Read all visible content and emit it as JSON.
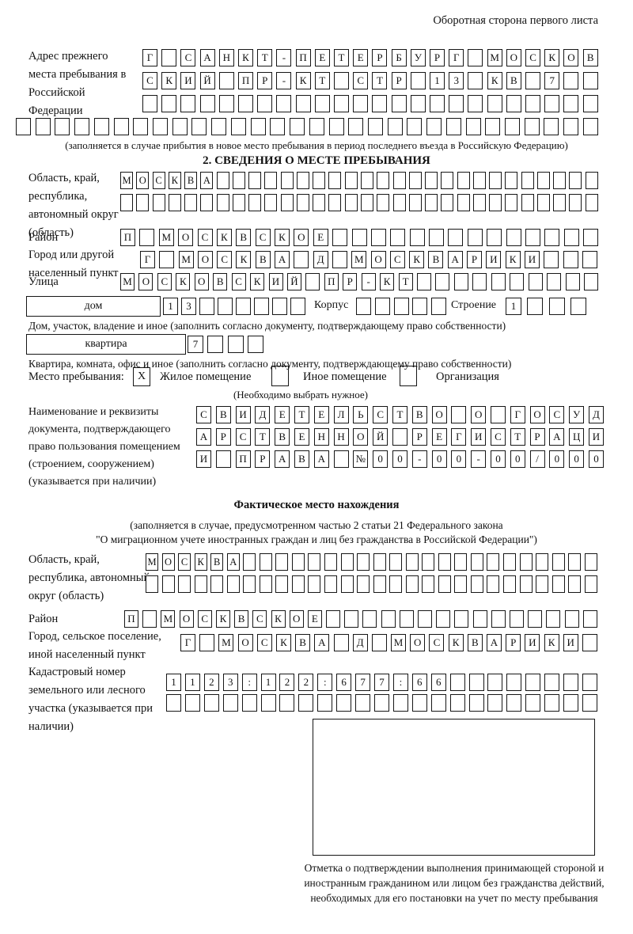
{
  "header": {
    "note": "Оборотная сторона первого листа"
  },
  "prev_address": {
    "label": "Адрес прежнего места пребывания в Российской Федерации",
    "rows": [
      {
        "count": 24,
        "cells": "Г САНКТ-ПЕТЕРБУРГ МОСКОВ"
      },
      {
        "count": 24,
        "cells": "СКИЙ ПР-КТ СТР 13 КВ 7"
      },
      {
        "count": 24,
        "cells": ""
      },
      {
        "count": 30,
        "cells": ""
      }
    ],
    "caption": "(заполняется в случае прибытия в новое место пребывания в период последнего въезда в Российскую Федерацию)"
  },
  "section2": {
    "title": "2. СВЕДЕНИЯ О МЕСТЕ ПРЕБЫВАНИЯ",
    "region": {
      "label": "Область, край, республика, автономный округ (область)",
      "rows": [
        {
          "count": 30,
          "cells": "МОСКВА"
        },
        {
          "count": 30,
          "cells": ""
        }
      ]
    },
    "district": {
      "label": "Район",
      "row": {
        "count": 25,
        "cells": "П МОСКВСКОЕ"
      }
    },
    "city": {
      "label": "Город или другой населенный пункт",
      "row": {
        "count": 24,
        "cells": "Г МОСКВА Д МОСКВАРИКИ"
      }
    },
    "street": {
      "label": "Улица",
      "row": {
        "count": 26,
        "cells": "МОСКОВСКИЙ ПР-КТ"
      }
    },
    "house": {
      "box_label": "дом",
      "row": {
        "count": 8,
        "cells": "13"
      },
      "korpus_label": "Корпус",
      "korpus_row": {
        "count": 5,
        "cells": ""
      },
      "stroenie_label": "Строение",
      "stroenie_row": {
        "count": 4,
        "cells": "1"
      },
      "caption": "Дом, участок, владение и иное (заполнить согласно документу, подтверждающему право собственности)"
    },
    "apartment": {
      "box_label": "квартира",
      "row": {
        "count": 4,
        "cells": "7"
      },
      "caption": "Квартира, комната, офис и иное (заполнить согласно документу, подтверждающему право собственности)"
    },
    "stay": {
      "label": "Место пребывания:",
      "mark": "X",
      "option_residential": "Жилое помещение",
      "option_other": "Иное помещение",
      "option_org": "Организация",
      "note": "(Необходимо выбрать нужное)"
    },
    "document": {
      "label": "Наименование и реквизиты документа, подтверждающего право пользования помещением (строением, сооружением) (указывается при наличии)",
      "rows": [
        {
          "count": 21,
          "cells": "СВИДЕТЕЛЬСТВО О ГОСУД"
        },
        {
          "count": 21,
          "cells": "АРСТВЕННОЙ РЕГИСТРАЦИ"
        },
        {
          "count": 21,
          "cells": "И ПРАВА №00-00-00/000"
        }
      ]
    }
  },
  "actual_location": {
    "title": "Фактическое место нахождения",
    "caption_line1": "(заполняется в случае, предусмотренном частью 2 статьи 21 Федерального закона",
    "caption_line2": "\"О миграционном учете иностранных граждан и лиц без гражданства в Российской Федерации\")",
    "region": {
      "label": "Область, край, республика, автономный округ (область)",
      "rows": [
        {
          "count": 28,
          "cells": "МОСКВА"
        },
        {
          "count": 28,
          "cells": ""
        }
      ]
    },
    "district": {
      "label": "Район",
      "row": {
        "count": 26,
        "cells": "П МОСКВСКОЕ"
      }
    },
    "city": {
      "label": "Город, сельское поселение, иной населенный пункт",
      "row": {
        "count": 22,
        "cells": "Г МОСКВА Д МОСКВАРИКИ"
      }
    },
    "cadastral": {
      "label": "Кадастровый номер земельного или лесного участка (указывается при наличии)",
      "rows": [
        {
          "count": 23,
          "cells": "1123:122:677:66"
        },
        {
          "count": 23,
          "cells": ""
        }
      ]
    },
    "stamp_note": "Отметка о подтверждении выполнения принимающей стороной и иностранным гражданином или лицом без гражданства действий, необходимых для его постановки на учет по месту пребывания"
  }
}
